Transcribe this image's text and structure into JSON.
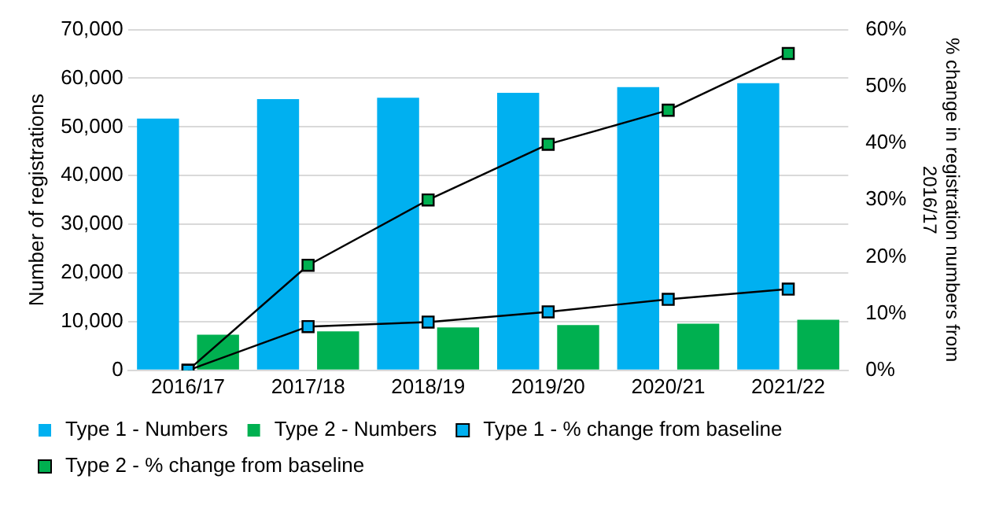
{
  "chart_data": {
    "type": "bar",
    "categories": [
      "2016/17",
      "2017/18",
      "2018/19",
      "2019/20",
      "2020/21",
      "2021/22"
    ],
    "ylabel": "Number of registrations",
    "y2label": "% change in registration numbers from 2016/17",
    "ylim": [
      0,
      70000
    ],
    "yticks": [
      {
        "value": 0,
        "label": "0"
      },
      {
        "value": 10000,
        "label": "10,000"
      },
      {
        "value": 20000,
        "label": "20,000"
      },
      {
        "value": 30000,
        "label": "30,000"
      },
      {
        "value": 40000,
        "label": "40,000"
      },
      {
        "value": 50000,
        "label": "50,000"
      },
      {
        "value": 60000,
        "label": "60,000"
      },
      {
        "value": 70000,
        "label": "70,000"
      }
    ],
    "y2lim": [
      0,
      60
    ],
    "y2ticks": [
      {
        "value": 0,
        "label": "0%"
      },
      {
        "value": 10,
        "label": "10%"
      },
      {
        "value": 20,
        "label": "20%"
      },
      {
        "value": 30,
        "label": "30%"
      },
      {
        "value": 40,
        "label": "40%"
      },
      {
        "value": 50,
        "label": "50%"
      },
      {
        "value": 60,
        "label": "60%"
      }
    ],
    "grid": "y",
    "legend": "bottom",
    "marker": "square",
    "series": [
      {
        "name": "Type 1 - Numbers",
        "color": "#00b0f0",
        "values": [
          51700,
          55700,
          56000,
          57000,
          58200,
          59000
        ]
      },
      {
        "name": "Type 2 - Numbers",
        "color": "#00b050",
        "values": [
          7300,
          8000,
          8800,
          9300,
          9600,
          10400
        ]
      },
      {
        "name": "Type 1 - % change from baseline",
        "type": "line",
        "axis": "y2",
        "color": "#00b0f0",
        "values": [
          0,
          7.7,
          8.5,
          10.3,
          12.5,
          14.3
        ]
      },
      {
        "name": "Type 2 - % change from baseline",
        "type": "line",
        "axis": "y2",
        "color": "#00b050",
        "values": [
          0,
          18.5,
          30,
          39.8,
          45.8,
          55.8
        ]
      }
    ]
  }
}
